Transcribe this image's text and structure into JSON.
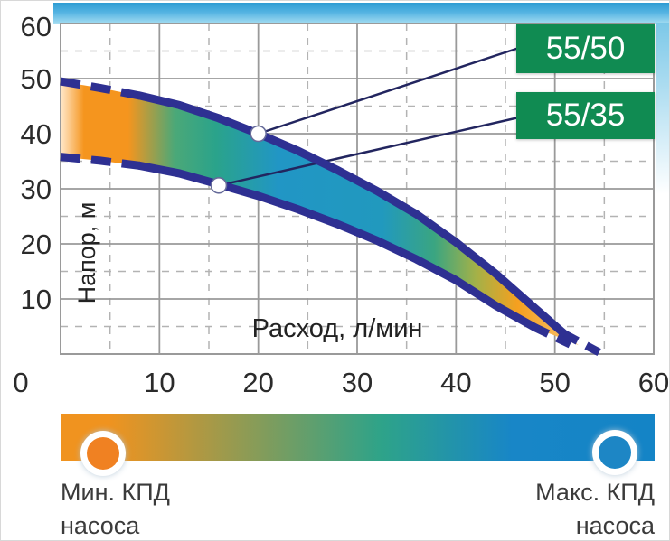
{
  "chart_data": {
    "type": "area",
    "title": "",
    "xlabel": "Расход, л/мин",
    "ylabel": "Напор, м",
    "xlim": [
      0,
      60
    ],
    "ylim": [
      0,
      60
    ],
    "x_ticks": [
      0,
      10,
      20,
      30,
      40,
      50,
      60
    ],
    "y_ticks": [
      10,
      20,
      30,
      40,
      50,
      60
    ],
    "grid": "major solid every 10, minor dashed every 5",
    "legend_position": "labels in green boxes top-right with callout lines",
    "series": [
      {
        "name": "55/50",
        "dashed_start": [
          [
            0,
            49.5
          ],
          [
            4,
            48.3
          ],
          [
            8,
            46.9
          ]
        ],
        "solid": [
          [
            8,
            46.9
          ],
          [
            12,
            45.2
          ],
          [
            16,
            42.8
          ],
          [
            20,
            40
          ],
          [
            24,
            36.9
          ],
          [
            28,
            33.4
          ],
          [
            32,
            29.6
          ],
          [
            36,
            25.4
          ],
          [
            40,
            20.3
          ],
          [
            44,
            14.6
          ],
          [
            48,
            8.3
          ],
          [
            51,
            3.6
          ]
        ],
        "dashed_end": [
          [
            51,
            3.6
          ],
          [
            54.6,
            0.2
          ]
        ],
        "marker_point": [
          20,
          40
        ]
      },
      {
        "name": "55/35",
        "dashed_start": [
          [
            0,
            35.8
          ],
          [
            4,
            35.1
          ],
          [
            8,
            34.2
          ]
        ],
        "solid": [
          [
            8,
            34.2
          ],
          [
            12,
            32.8
          ],
          [
            16,
            30.8
          ],
          [
            20,
            28.7
          ],
          [
            24,
            26.3
          ],
          [
            28,
            23.6
          ],
          [
            32,
            20.6
          ],
          [
            36,
            17.2
          ],
          [
            40,
            13.4
          ],
          [
            44,
            8.8
          ],
          [
            48,
            4.8
          ]
        ],
        "dashed_end": [
          [
            48,
            4.8
          ],
          [
            52,
            1.4
          ]
        ],
        "marker_point": [
          16,
          30.6
        ]
      }
    ],
    "band_meaning": "area between curves shaded by pump efficiency: orange = min, blue = max"
  },
  "legend": {
    "min_line1": "Мин. КПД",
    "min_line2": "насоса",
    "max_line1": "Макс. КПД",
    "max_line2": "насоса"
  },
  "colors": {
    "curve_navy": "#2E3092",
    "callout_line": "#22255F",
    "grid_major": "#9A9A9A",
    "grid_minor": "#B3B3B3",
    "tick_text": "#2B2B2B",
    "series_box_green": "#108B52",
    "band_orange": "#F5951E",
    "band_teal": "#2AA38B",
    "band_blue": "#2196C5",
    "bar_orange": "#F0931F",
    "bar_teal": "#2EA389",
    "bar_blue": "#1886C7",
    "min_dot": "#F08122",
    "max_dot": "#1D86C5",
    "sky_top": "#2E9CD3",
    "sky_bottom": "#A9DFF2"
  }
}
